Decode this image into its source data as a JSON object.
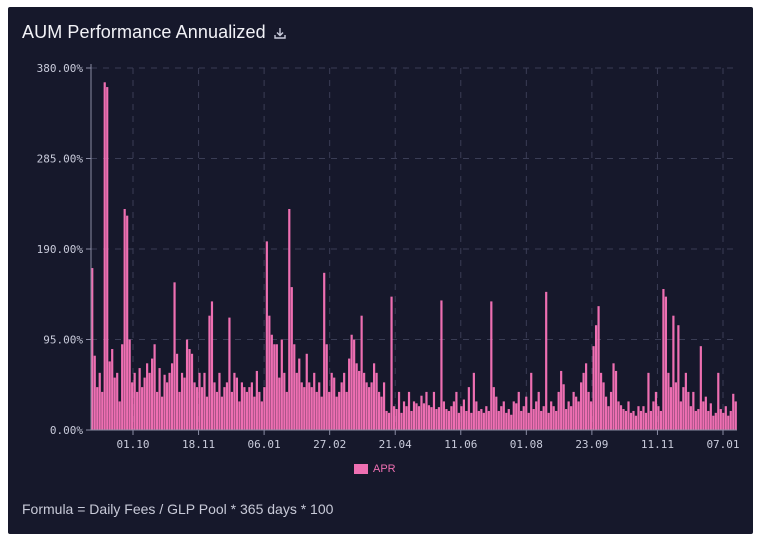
{
  "header": {
    "title": "AUM Performance Annualized",
    "download_icon": "download-icon"
  },
  "footer": {
    "formula": "Formula = Daily Fees / GLP Pool * 365 days * 100"
  },
  "colors": {
    "background": "#16182b",
    "bar": "#ee6fb2",
    "grid": "#3a3d55",
    "text": "#c9cbdb"
  },
  "chart_data": {
    "type": "bar",
    "grid": true,
    "legend_position": "bottom-center",
    "ylim": [
      0,
      380
    ],
    "y_ticks": [
      0,
      95,
      190,
      285,
      380
    ],
    "y_tick_labels": [
      "0.00%",
      "95.00%",
      "190.00%",
      "285.00%",
      "380.00%"
    ],
    "x_tick_labels": [
      "01.10",
      "18.11",
      "06.01",
      "27.02",
      "21.04",
      "11.06",
      "01.08",
      "23.09",
      "11.11",
      "07.01"
    ],
    "series": [
      {
        "name": "APR",
        "values": [
          170,
          78,
          45,
          60,
          40,
          365,
          360,
          72,
          85,
          55,
          60,
          30,
          90,
          232,
          225,
          95,
          50,
          60,
          40,
          65,
          45,
          55,
          70,
          60,
          75,
          90,
          40,
          65,
          35,
          58,
          50,
          60,
          70,
          155,
          80,
          40,
          60,
          55,
          95,
          85,
          80,
          50,
          45,
          60,
          45,
          60,
          35,
          120,
          135,
          50,
          40,
          60,
          35,
          45,
          50,
          118,
          40,
          60,
          55,
          30,
          50,
          45,
          40,
          45,
          50,
          35,
          62,
          40,
          30,
          45,
          198,
          120,
          100,
          90,
          90,
          55,
          95,
          60,
          40,
          232,
          150,
          90,
          60,
          75,
          50,
          45,
          80,
          50,
          45,
          60,
          40,
          50,
          35,
          165,
          90,
          40,
          60,
          55,
          35,
          40,
          50,
          60,
          40,
          75,
          100,
          95,
          70,
          62,
          120,
          60,
          50,
          45,
          50,
          70,
          60,
          40,
          35,
          50,
          20,
          18,
          140,
          25,
          22,
          40,
          18,
          30,
          25,
          40,
          20,
          30,
          28,
          25,
          36,
          28,
          40,
          26,
          24,
          40,
          22,
          24,
          136,
          30,
          22,
          20,
          25,
          30,
          40,
          18,
          25,
          32,
          20,
          45,
          18,
          60,
          30,
          20,
          22,
          18,
          25,
          20,
          135,
          45,
          35,
          20,
          25,
          30,
          18,
          22,
          16,
          30,
          28,
          40,
          20,
          25,
          35,
          18,
          60,
          22,
          30,
          40,
          20,
          25,
          145,
          18,
          30,
          25,
          20,
          40,
          62,
          48,
          22,
          30,
          25,
          40,
          35,
          30,
          50,
          60,
          70,
          40,
          30,
          88,
          110,
          130,
          60,
          50,
          35,
          25,
          40,
          70,
          62,
          30,
          26,
          22,
          20,
          30,
          18,
          20,
          15,
          25,
          20,
          25,
          18,
          60,
          20,
          30,
          40,
          25,
          20,
          148,
          140,
          60,
          45,
          120,
          50,
          110,
          30,
          45,
          60,
          40,
          25,
          40,
          20,
          22,
          88,
          30,
          35,
          20,
          28,
          15,
          18,
          60,
          22,
          18,
          25,
          15,
          20,
          38,
          30
        ]
      }
    ]
  }
}
